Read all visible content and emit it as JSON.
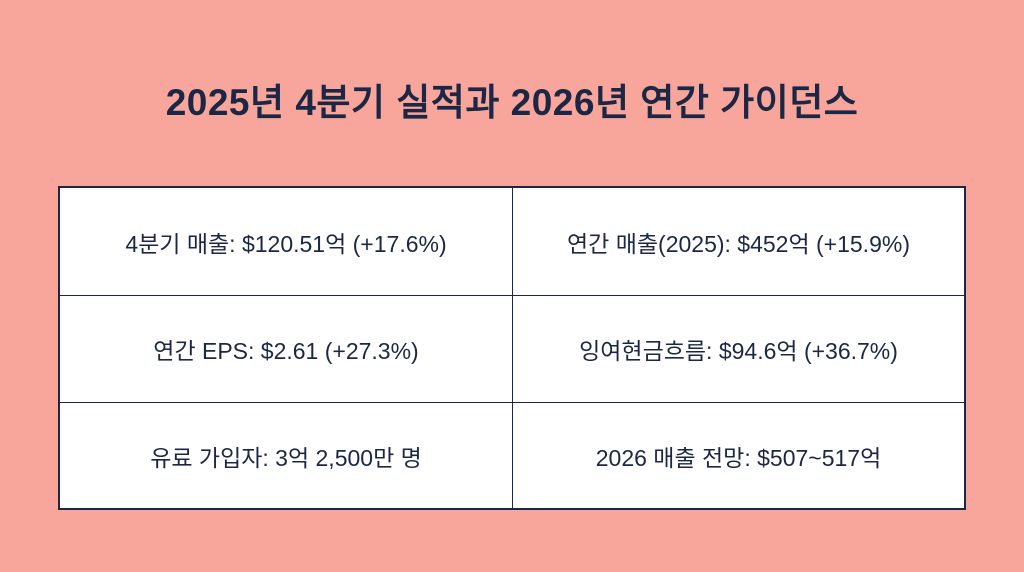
{
  "title": "2025년 4분기 실적과 2026년 연간 가이던스",
  "cells": [
    "4분기 매출: $120.51억 (+17.6%)",
    "연간 매출(2025): $452억 (+15.9%)",
    "연간 EPS: $2.61 (+27.3%)",
    "잉여현금흐름: $94.6억 (+36.7%)",
    "유료 가입자: 3억 2,500만 명",
    "2026 매출 전망: $507~517억"
  ],
  "colors": {
    "background": "#f8a69b",
    "text": "#1b2745",
    "table": "#ffffff"
  }
}
